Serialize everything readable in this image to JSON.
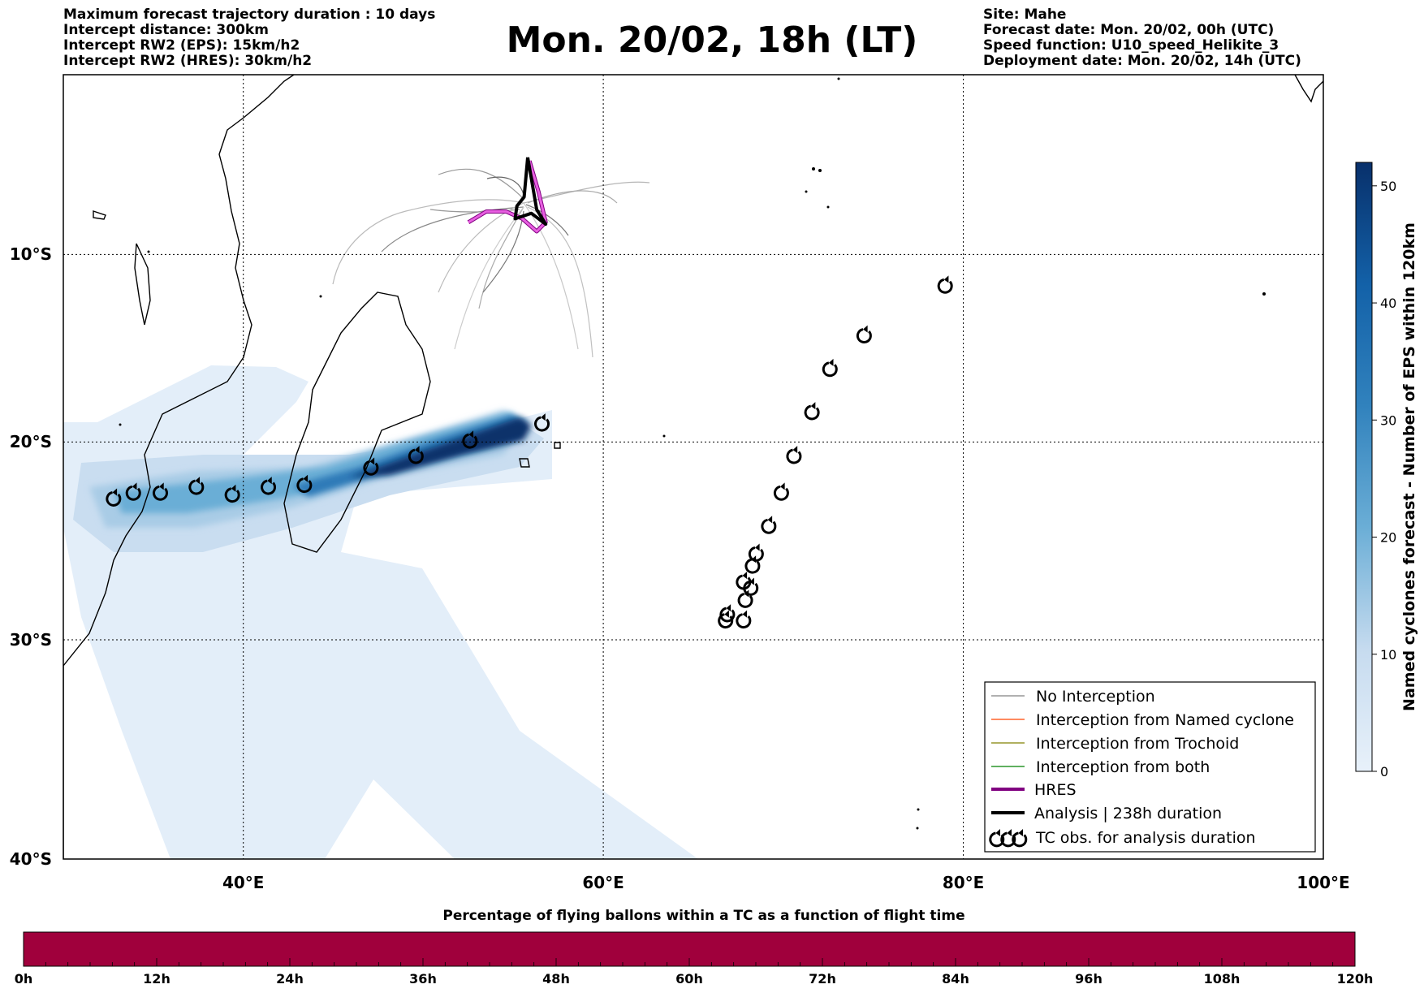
{
  "header": {
    "left": [
      "Maximum forecast trajectory duration : 10 days",
      "Intercept distance: 300km",
      "Intercept RW2 (EPS):  15km/h2",
      "Intercept RW2 (HRES): 30km/h2"
    ],
    "title": "Mon. 20/02, 18h (LT)",
    "right": [
      "Site: Mahe",
      "Forecast date: Mon. 20/02, 00h (UTC)",
      "Speed function: U10_speed_Helikite_3",
      "Deployment date: Mon. 20/02, 14h (UTC)"
    ]
  },
  "map": {
    "lon_range": [
      30,
      100
    ],
    "lat_range": [
      -40,
      0
    ],
    "lon_ticks": [
      "40°E",
      "60°E",
      "80°E",
      "100°E"
    ],
    "lat_ticks": [
      "10°S",
      "20°S",
      "30°S",
      "40°S"
    ],
    "grid": "dotted",
    "colors": {
      "no_interception": "#808080",
      "named_cyclone": "#ff4500",
      "trochoid": "#808000",
      "both": "#008000",
      "hres": "#800080",
      "analysis": "#000000"
    }
  },
  "legend": {
    "placement": "bottom-right",
    "entries": [
      {
        "label": "No Interception",
        "color": "#808080",
        "kind": "line"
      },
      {
        "label": "Interception from Named cyclone",
        "color": "#ff4500",
        "kind": "line"
      },
      {
        "label": "Interception from Trochoid",
        "color": "#808000",
        "kind": "line"
      },
      {
        "label": "Interception from both",
        "color": "#008000",
        "kind": "line"
      },
      {
        "label": "HRES",
        "color": "#800080",
        "kind": "thick"
      },
      {
        "label": "Analysis | 238h duration",
        "color": "#000000",
        "kind": "thick"
      },
      {
        "label": "TC obs. for analysis duration",
        "color": "#000000",
        "kind": "marker"
      }
    ]
  },
  "colorbar": {
    "label": "Named cyclones forecast - Number of EPS within 120km",
    "ticks": [
      "0",
      "10",
      "20",
      "30",
      "40",
      "50"
    ],
    "range": [
      0,
      52
    ]
  },
  "tc_obs": {
    "west_track": [
      [
        32.8,
        -23.0
      ],
      [
        33.9,
        -22.7
      ],
      [
        35.4,
        -22.7
      ],
      [
        37.4,
        -22.4
      ],
      [
        39.4,
        -22.8
      ],
      [
        41.4,
        -22.4
      ],
      [
        43.4,
        -22.3
      ],
      [
        47.1,
        -21.4
      ],
      [
        49.6,
        -20.8
      ],
      [
        52.6,
        -20.0
      ],
      [
        56.6,
        -19.1
      ]
    ],
    "east_track": [
      [
        79.0,
        -11.7
      ],
      [
        74.5,
        -14.4
      ],
      [
        72.6,
        -16.2
      ],
      [
        71.6,
        -18.5
      ],
      [
        70.6,
        -20.8
      ],
      [
        69.9,
        -22.7
      ],
      [
        69.2,
        -24.4
      ],
      [
        68.5,
        -25.8
      ],
      [
        68.3,
        -26.4
      ],
      [
        67.8,
        -27.2
      ],
      [
        68.2,
        -27.5
      ],
      [
        67.9,
        -28.1
      ],
      [
        67.8,
        -29.1
      ],
      [
        66.8,
        -29.1
      ],
      [
        66.9,
        -28.8
      ]
    ]
  },
  "analysis_path": [
    [
      55.8,
      -4.6
    ],
    [
      55.6,
      -6.8
    ],
    [
      55.2,
      -7.3
    ],
    [
      55.1,
      -8.0
    ],
    [
      56.0,
      -7.7
    ],
    [
      56.8,
      -8.3
    ],
    [
      56.3,
      -7.5
    ],
    [
      55.8,
      -4.6
    ]
  ],
  "hres_path": [
    [
      52.5,
      -8.2
    ],
    [
      53.5,
      -7.6
    ],
    [
      54.6,
      -7.6
    ],
    [
      55.5,
      -8.0
    ],
    [
      56.3,
      -8.7
    ],
    [
      56.8,
      -8.2
    ],
    [
      56.4,
      -6.5
    ],
    [
      55.9,
      -4.8
    ]
  ],
  "bottom_bar": {
    "title": "Percentage of flying ballons within a TC as a function of flight time",
    "color": "#a0003c",
    "ticks": [
      "0h",
      "12h",
      "24h",
      "36h",
      "48h",
      "60h",
      "72h",
      "84h",
      "96h",
      "108h",
      "120h"
    ]
  }
}
